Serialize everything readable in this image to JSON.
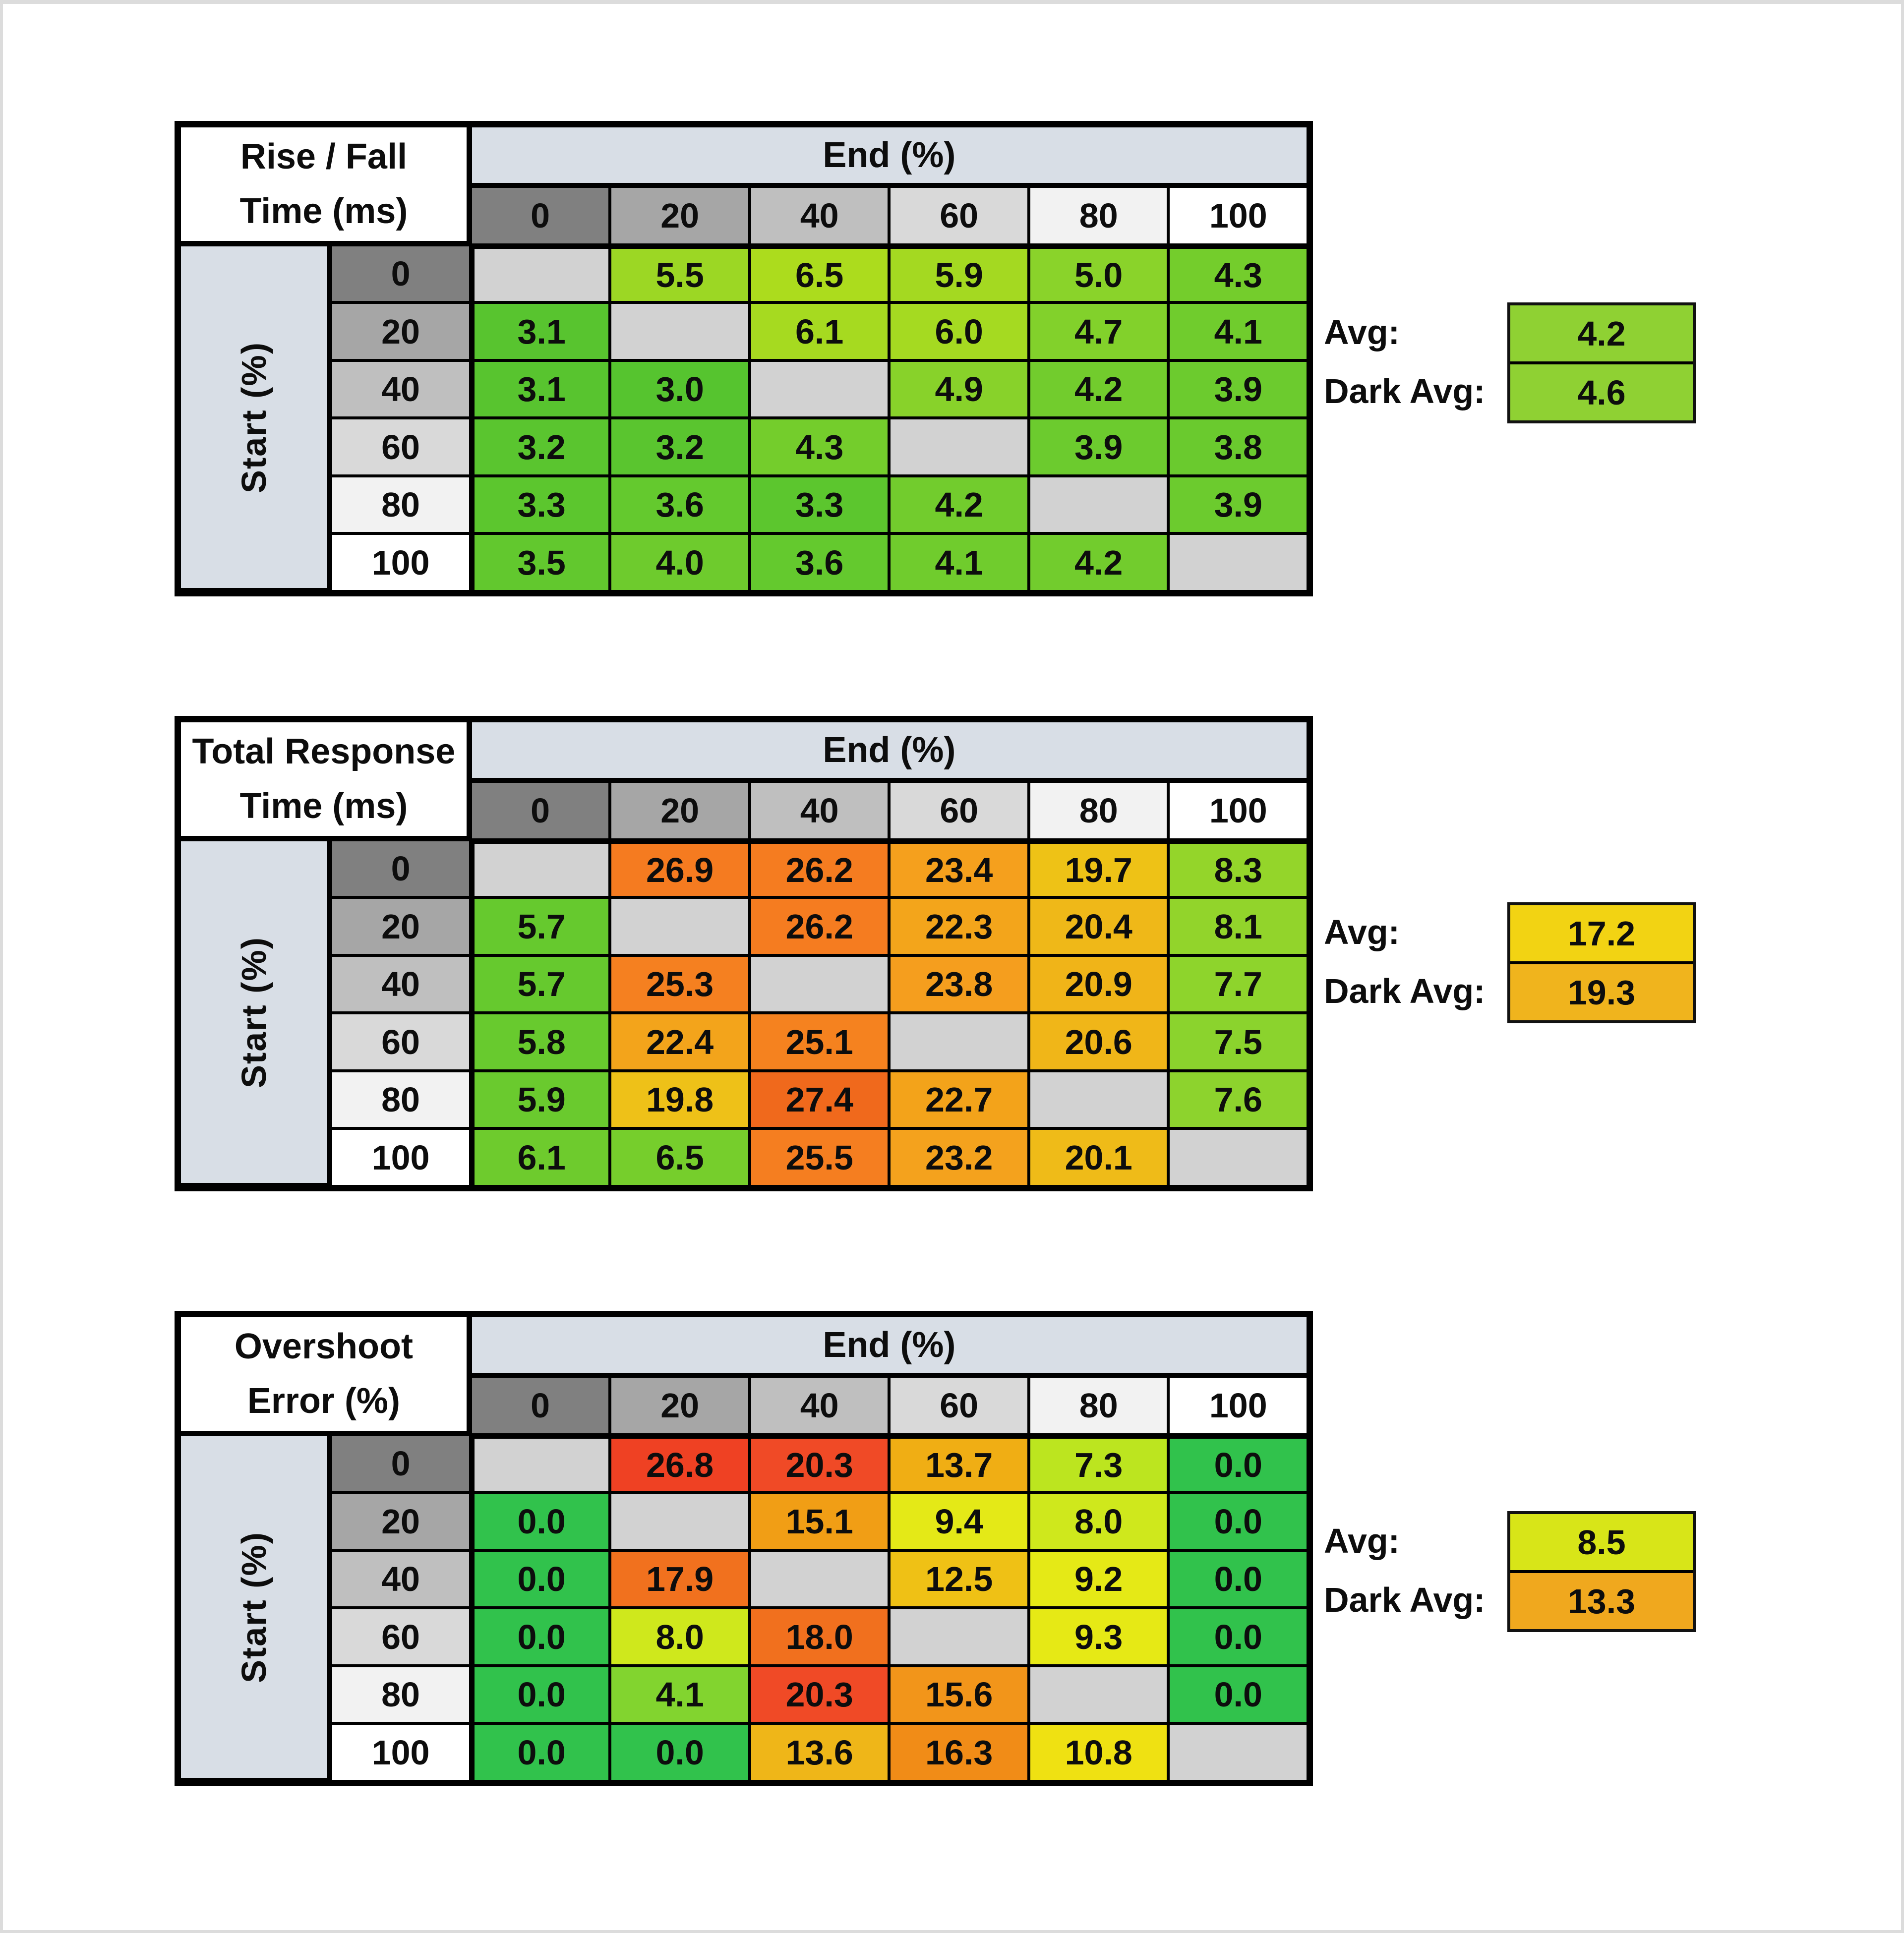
{
  "page": {
    "background": "#ffffff",
    "frame_color": "#dcdcdc",
    "border_color": "#000000"
  },
  "colors": {
    "axis_band_blue": "#d8dee6",
    "diagonal_gray": "#d2d2d2",
    "header_shades": [
      "#808080",
      "#a6a6a6",
      "#bfbfbf",
      "#d9d9d9",
      "#f2f2f2",
      "#ffffff"
    ]
  },
  "chart_data": [
    {
      "type": "heatmap",
      "title_line1": "Rise / Fall",
      "title_line2": "Time (ms)",
      "col_axis_label": "End (%)",
      "row_axis_label": "Start (%)",
      "columns": [
        "0",
        "20",
        "40",
        "60",
        "80",
        "100"
      ],
      "rows": [
        "0",
        "20",
        "40",
        "60",
        "80",
        "100"
      ],
      "cells": [
        [
          null,
          {
            "v": "5.5",
            "c": "#9cd724"
          },
          {
            "v": "6.5",
            "c": "#acdc1d"
          },
          {
            "v": "5.9",
            "c": "#a4d921"
          },
          {
            "v": "5.0",
            "c": "#8ad32a"
          },
          {
            "v": "4.3",
            "c": "#74cd2c"
          }
        ],
        [
          {
            "v": "3.1",
            "c": "#58c42f"
          },
          null,
          {
            "v": "6.1",
            "c": "#a6da20"
          },
          {
            "v": "6.0",
            "c": "#a5da21"
          },
          {
            "v": "4.7",
            "c": "#82d12b"
          },
          {
            "v": "4.1",
            "c": "#70cc2d"
          }
        ],
        [
          {
            "v": "3.1",
            "c": "#58c42f"
          },
          {
            "v": "3.0",
            "c": "#56c42f"
          },
          null,
          {
            "v": "4.9",
            "c": "#88d22a"
          },
          {
            "v": "4.2",
            "c": "#72cc2d"
          },
          {
            "v": "3.9",
            "c": "#6ccb2e"
          }
        ],
        [
          {
            "v": "3.2",
            "c": "#5ac52f"
          },
          {
            "v": "3.2",
            "c": "#5ac52f"
          },
          {
            "v": "4.3",
            "c": "#74cd2c"
          },
          null,
          {
            "v": "3.9",
            "c": "#6ccb2e"
          },
          {
            "v": "3.8",
            "c": "#6aca2e"
          }
        ],
        [
          {
            "v": "3.3",
            "c": "#5cc62e"
          },
          {
            "v": "3.6",
            "c": "#64c92e"
          },
          {
            "v": "3.3",
            "c": "#5cc62e"
          },
          {
            "v": "4.2",
            "c": "#72cc2d"
          },
          null,
          {
            "v": "3.9",
            "c": "#6ccb2e"
          }
        ],
        [
          {
            "v": "3.5",
            "c": "#62c82e"
          },
          {
            "v": "4.0",
            "c": "#6ecb2d"
          },
          {
            "v": "3.6",
            "c": "#64c92e"
          },
          {
            "v": "4.1",
            "c": "#70cc2d"
          },
          {
            "v": "4.2",
            "c": "#72cc2d"
          },
          null
        ]
      ],
      "avg": {
        "label": "Avg:",
        "value": "4.2",
        "color": "#8fd133"
      },
      "dark_avg": {
        "label": "Dark Avg:",
        "value": "4.6",
        "color": "#8fd133"
      }
    },
    {
      "type": "heatmap",
      "title_line1": "Total Response",
      "title_line2": "Time (ms)",
      "col_axis_label": "End (%)",
      "row_axis_label": "Start (%)",
      "columns": [
        "0",
        "20",
        "40",
        "60",
        "80",
        "100"
      ],
      "rows": [
        "0",
        "20",
        "40",
        "60",
        "80",
        "100"
      ],
      "cells": [
        [
          null,
          {
            "v": "26.9",
            "c": "#f57b20"
          },
          {
            "v": "26.2",
            "c": "#f57c20"
          },
          {
            "v": "23.4",
            "c": "#f5a01d"
          },
          {
            "v": "19.7",
            "c": "#eec216"
          },
          {
            "v": "8.3",
            "c": "#94d52a"
          }
        ],
        [
          {
            "v": "5.7",
            "c": "#66c92e"
          },
          null,
          {
            "v": "26.2",
            "c": "#f57c20"
          },
          {
            "v": "22.3",
            "c": "#f3a51b"
          },
          {
            "v": "20.4",
            "c": "#efb818"
          },
          {
            "v": "8.1",
            "c": "#92d42b"
          }
        ],
        [
          {
            "v": "5.7",
            "c": "#66c92e"
          },
          {
            "v": "25.3",
            "c": "#f58020"
          },
          null,
          {
            "v": "23.8",
            "c": "#f59e1e"
          },
          {
            "v": "20.9",
            "c": "#f0b418"
          },
          {
            "v": "7.7",
            "c": "#8ed42c"
          }
        ],
        [
          {
            "v": "5.8",
            "c": "#68ca2e"
          },
          {
            "v": "22.4",
            "c": "#f3a41b"
          },
          {
            "v": "25.1",
            "c": "#f5821f"
          },
          null,
          {
            "v": "20.6",
            "c": "#f0b618"
          },
          {
            "v": "7.5",
            "c": "#8bd32d"
          }
        ],
        [
          {
            "v": "5.9",
            "c": "#6aca2e"
          },
          {
            "v": "19.8",
            "c": "#eec118"
          },
          {
            "v": "27.4",
            "c": "#f0691c"
          },
          {
            "v": "22.7",
            "c": "#f3a31a"
          },
          null,
          {
            "v": "7.6",
            "c": "#8dd32d"
          }
        ],
        [
          {
            "v": "6.1",
            "c": "#6ecb2d"
          },
          {
            "v": "6.5",
            "c": "#76ce2c"
          },
          {
            "v": "25.5",
            "c": "#f57e20"
          },
          {
            "v": "23.2",
            "c": "#f4a21d"
          },
          {
            "v": "20.1",
            "c": "#efbb18"
          },
          null
        ]
      ],
      "avg": {
        "label": "Avg:",
        "value": "17.2",
        "color": "#f2d313"
      },
      "dark_avg": {
        "label": "Dark Avg:",
        "value": "19.3",
        "color": "#f0b41d"
      }
    },
    {
      "type": "heatmap",
      "title_line1": "Overshoot",
      "title_line2": "Error (%)",
      "col_axis_label": "End (%)",
      "row_axis_label": "Start (%)",
      "columns": [
        "0",
        "20",
        "40",
        "60",
        "80",
        "100"
      ],
      "rows": [
        "0",
        "20",
        "40",
        "60",
        "80",
        "100"
      ],
      "cells": [
        [
          null,
          {
            "v": "26.8",
            "c": "#ef4123"
          },
          {
            "v": "20.3",
            "c": "#f04a26"
          },
          {
            "v": "13.7",
            "c": "#f0ae14"
          },
          {
            "v": "7.3",
            "c": "#bce51f"
          },
          {
            "v": "0.0",
            "c": "#31c24c"
          }
        ],
        [
          {
            "v": "0.0",
            "c": "#31c24c"
          },
          null,
          {
            "v": "15.1",
            "c": "#f19e15"
          },
          {
            "v": "9.4",
            "c": "#e4e917"
          },
          {
            "v": "8.0",
            "c": "#cfe81c"
          },
          {
            "v": "0.0",
            "c": "#31c24c"
          }
        ],
        [
          {
            "v": "0.0",
            "c": "#31c24c"
          },
          {
            "v": "17.9",
            "c": "#f1711e"
          },
          null,
          {
            "v": "12.5",
            "c": "#efc115"
          },
          {
            "v": "9.2",
            "c": "#e5e916"
          },
          {
            "v": "0.0",
            "c": "#31c24c"
          }
        ],
        [
          {
            "v": "0.0",
            "c": "#31c24c"
          },
          {
            "v": "8.0",
            "c": "#cfe81c"
          },
          {
            "v": "18.0",
            "c": "#f1701e"
          },
          null,
          {
            "v": "9.3",
            "c": "#e6e915"
          },
          {
            "v": "0.0",
            "c": "#31c24c"
          }
        ],
        [
          {
            "v": "0.0",
            "c": "#31c24c"
          },
          {
            "v": "4.1",
            "c": "#82d42f"
          },
          {
            "v": "20.3",
            "c": "#f04a26"
          },
          {
            "v": "15.6",
            "c": "#f2951a"
          },
          null,
          {
            "v": "0.0",
            "c": "#31c24c"
          }
        ],
        [
          {
            "v": "0.0",
            "c": "#31c24c"
          },
          {
            "v": "0.0",
            "c": "#31c24c"
          },
          {
            "v": "13.6",
            "c": "#efb618"
          },
          {
            "v": "16.3",
            "c": "#f18c17"
          },
          {
            "v": "10.8",
            "c": "#efe112"
          },
          null
        ]
      ],
      "avg": {
        "label": "Avg:",
        "value": "8.5",
        "color": "#d8e518"
      },
      "dark_avg": {
        "label": "Dark Avg:",
        "value": "13.3",
        "color": "#f0a81e"
      }
    }
  ]
}
